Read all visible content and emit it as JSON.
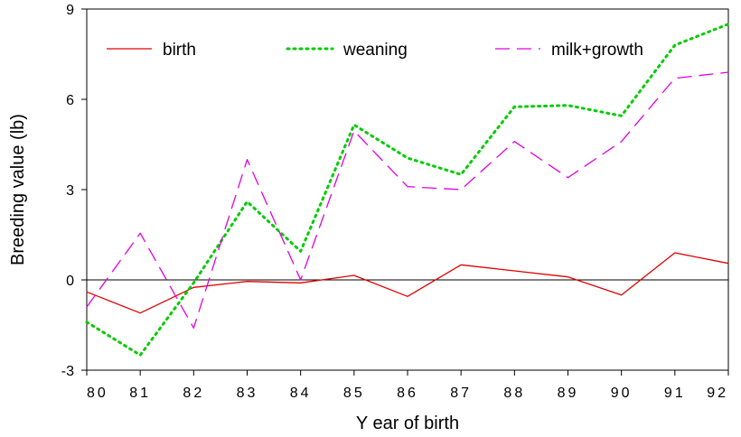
{
  "chart_data": {
    "type": "line",
    "title": "",
    "xlabel": "Y ear of birth",
    "ylabel": "Breeding value (lb)",
    "categories": [
      "80",
      "81",
      "82",
      "83",
      "84",
      "85",
      "86",
      "87",
      "88",
      "89",
      "90",
      "91",
      "92"
    ],
    "ylim": [
      -3,
      9
    ],
    "yticks": [
      "-3",
      "0",
      "3",
      "6",
      "9"
    ],
    "grid": false,
    "zero_line": true,
    "legend_position": "top",
    "series": [
      {
        "name": "birth",
        "color": "#e00000",
        "dash": "solid",
        "values": [
          -0.4,
          -1.1,
          -0.25,
          -0.05,
          -0.1,
          0.15,
          -0.55,
          0.5,
          0.3,
          0.1,
          -0.5,
          0.9,
          0.55
        ]
      },
      {
        "name": "weaning",
        "color": "#00cc00",
        "dash": "dotted",
        "values": [
          -1.4,
          -2.5,
          -0.1,
          2.6,
          0.95,
          5.15,
          4.05,
          3.5,
          5.75,
          5.8,
          5.45,
          7.8,
          8.5
        ]
      },
      {
        "name": "milk+growth",
        "color": "#e000e0",
        "dash": "dashed",
        "values": [
          -0.9,
          1.55,
          -1.6,
          4.0,
          0.0,
          4.95,
          3.1,
          3.0,
          4.6,
          3.4,
          4.6,
          6.7,
          6.9
        ]
      }
    ]
  }
}
